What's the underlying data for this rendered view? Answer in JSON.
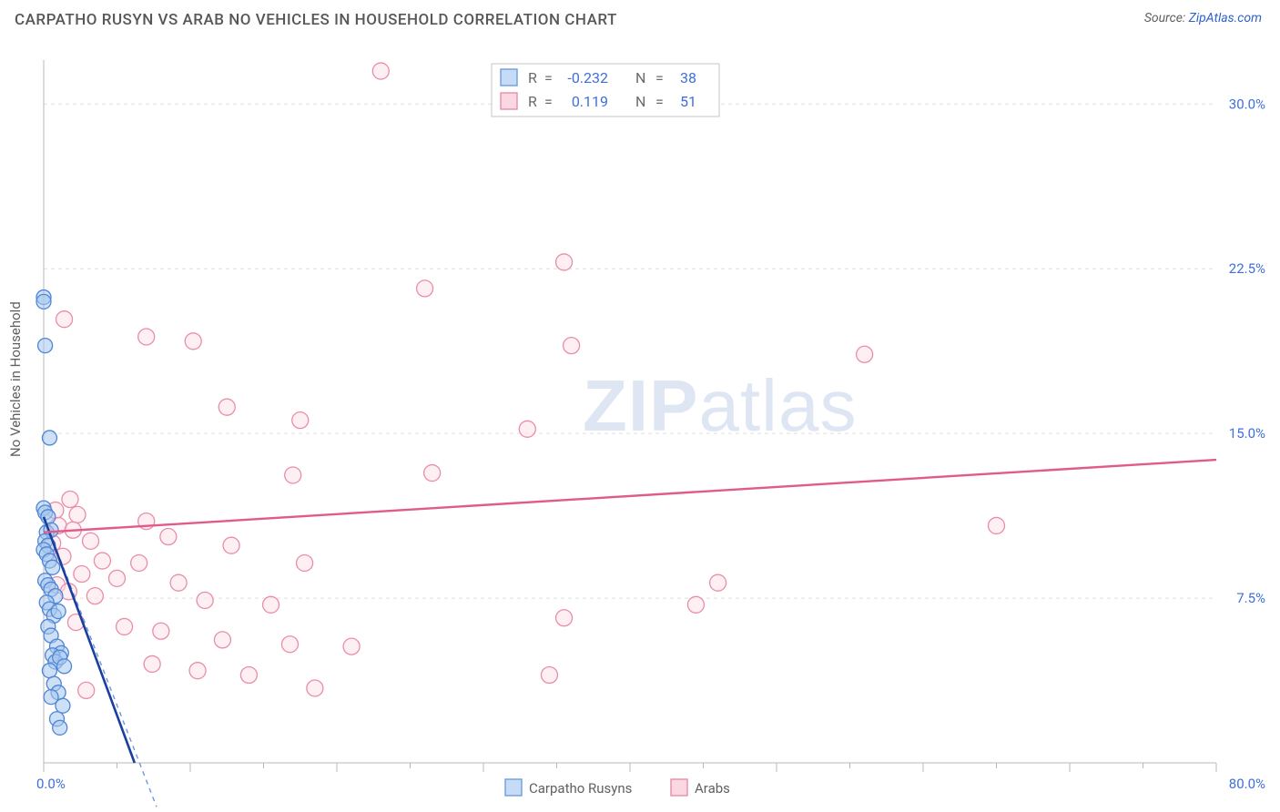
{
  "title": "CARPATHO RUSYN VS ARAB NO VEHICLES IN HOUSEHOLD CORRELATION CHART",
  "source_prefix": "Source: ",
  "source_link": "ZipAtlas.com",
  "watermark_a": "ZIP",
  "watermark_b": "atlas",
  "chart": {
    "type": "scatter",
    "plot_bg": "#ffffff",
    "grid_color": "#dfdfdf",
    "grid_dash": "4 4",
    "axis_color": "#b9b9b9",
    "axis_label_color": "#606060",
    "tick_label_color": "#3f6fd8",
    "y_axis_label": "No Vehicles in Household",
    "x_axis_label_min": "0.0%",
    "x_axis_label_max": "80.0%",
    "y_ticks": [
      {
        "v": 7.5,
        "label": "7.5%"
      },
      {
        "v": 15.0,
        "label": "15.0%"
      },
      {
        "v": 22.5,
        "label": "22.5%"
      },
      {
        "v": 30.0,
        "label": "30.0%"
      }
    ],
    "x_domain": [
      0,
      80
    ],
    "y_domain": [
      0,
      32
    ],
    "x_tick_major": [
      0,
      10,
      20,
      30,
      40,
      50,
      60,
      70,
      80
    ],
    "x_tick_minor": [
      5,
      15,
      25,
      35,
      45,
      55,
      65,
      75
    ],
    "series_a": {
      "name": "Carpatho Rusyns",
      "swatch_fill": "#c6dbf6",
      "swatch_stroke": "#6e9de0",
      "point_fill": "#a6c7ee",
      "point_stroke": "#4e86d6",
      "marker_r": 8,
      "trend_color": "#1a3f9c",
      "trend_dash_color": "#6f96df",
      "trend": {
        "x1": 0,
        "y1": 11.2,
        "x2": 6.2,
        "y2": 0
      },
      "data": [
        [
          0.0,
          21.2
        ],
        [
          0.0,
          21.0
        ],
        [
          0.1,
          19.0
        ],
        [
          0.4,
          14.8
        ],
        [
          0.0,
          11.6
        ],
        [
          0.1,
          11.4
        ],
        [
          0.3,
          11.2
        ],
        [
          0.2,
          10.5
        ],
        [
          0.5,
          10.6
        ],
        [
          0.1,
          10.1
        ],
        [
          0.3,
          9.9
        ],
        [
          0.0,
          9.7
        ],
        [
          0.2,
          9.5
        ],
        [
          0.4,
          9.2
        ],
        [
          0.6,
          8.9
        ],
        [
          0.1,
          8.3
        ],
        [
          0.3,
          8.1
        ],
        [
          0.5,
          7.9
        ],
        [
          0.8,
          7.6
        ],
        [
          0.2,
          7.3
        ],
        [
          0.4,
          7.0
        ],
        [
          0.7,
          6.7
        ],
        [
          1.0,
          6.9
        ],
        [
          0.3,
          6.2
        ],
        [
          0.5,
          5.8
        ],
        [
          0.9,
          5.3
        ],
        [
          1.2,
          5.0
        ],
        [
          0.6,
          4.9
        ],
        [
          0.8,
          4.6
        ],
        [
          1.1,
          4.8
        ],
        [
          0.4,
          4.2
        ],
        [
          1.4,
          4.4
        ],
        [
          0.7,
          3.6
        ],
        [
          1.0,
          3.2
        ],
        [
          0.5,
          3.0
        ],
        [
          1.3,
          2.6
        ],
        [
          0.9,
          2.0
        ],
        [
          1.1,
          1.6
        ]
      ]
    },
    "series_b": {
      "name": "Arabs",
      "swatch_fill": "#fbd7e2",
      "swatch_stroke": "#e88da9",
      "point_fill": "#fde1ea",
      "point_stroke": "#e98da9",
      "marker_r": 9,
      "trend_color": "#e05a8a",
      "trend": {
        "x1": 0,
        "y1": 10.5,
        "x2": 80,
        "y2": 13.8
      },
      "data": [
        [
          23.0,
          31.5
        ],
        [
          1.4,
          20.2
        ],
        [
          26.0,
          21.6
        ],
        [
          35.5,
          22.8
        ],
        [
          56.0,
          18.6
        ],
        [
          7.0,
          19.4
        ],
        [
          10.2,
          19.2
        ],
        [
          36.0,
          19.0
        ],
        [
          12.5,
          16.2
        ],
        [
          17.5,
          15.6
        ],
        [
          1.8,
          12.0
        ],
        [
          33.0,
          15.2
        ],
        [
          0.8,
          11.5
        ],
        [
          2.3,
          11.3
        ],
        [
          17.0,
          13.1
        ],
        [
          26.5,
          13.2
        ],
        [
          1.0,
          10.8
        ],
        [
          2.0,
          10.6
        ],
        [
          7.0,
          11.0
        ],
        [
          65.0,
          10.8
        ],
        [
          0.6,
          10.0
        ],
        [
          3.2,
          10.1
        ],
        [
          8.5,
          10.3
        ],
        [
          12.8,
          9.9
        ],
        [
          1.3,
          9.4
        ],
        [
          4.0,
          9.2
        ],
        [
          6.5,
          9.1
        ],
        [
          17.8,
          9.1
        ],
        [
          2.6,
          8.6
        ],
        [
          5.0,
          8.4
        ],
        [
          9.2,
          8.2
        ],
        [
          0.9,
          8.1
        ],
        [
          1.7,
          7.8
        ],
        [
          3.5,
          7.6
        ],
        [
          11.0,
          7.4
        ],
        [
          15.5,
          7.2
        ],
        [
          35.5,
          6.6
        ],
        [
          46.0,
          8.2
        ],
        [
          44.5,
          7.2
        ],
        [
          2.2,
          6.4
        ],
        [
          5.5,
          6.2
        ],
        [
          8.0,
          6.0
        ],
        [
          12.2,
          5.6
        ],
        [
          16.8,
          5.4
        ],
        [
          21.0,
          5.3
        ],
        [
          7.4,
          4.5
        ],
        [
          10.5,
          4.2
        ],
        [
          14.0,
          4.0
        ],
        [
          34.5,
          4.0
        ],
        [
          18.5,
          3.4
        ],
        [
          2.9,
          3.3
        ]
      ]
    },
    "stats_box": {
      "bg": "#ffffff",
      "border": "#c6c6c6",
      "text_color": "#6b6b6b",
      "value_color": "#3f6fd8",
      "rows": [
        {
          "R_label": "R",
          "eq": "=",
          "R": "-0.232",
          "N_label": "N",
          "N": "38"
        },
        {
          "R_label": "R",
          "eq": "=",
          "R": "0.119",
          "N_label": "N",
          "N": "51"
        }
      ]
    },
    "bottom_legend": {
      "items": [
        {
          "label": "Carpatho Rusyns",
          "series": "a"
        },
        {
          "label": "Arabs",
          "series": "b"
        }
      ]
    }
  }
}
